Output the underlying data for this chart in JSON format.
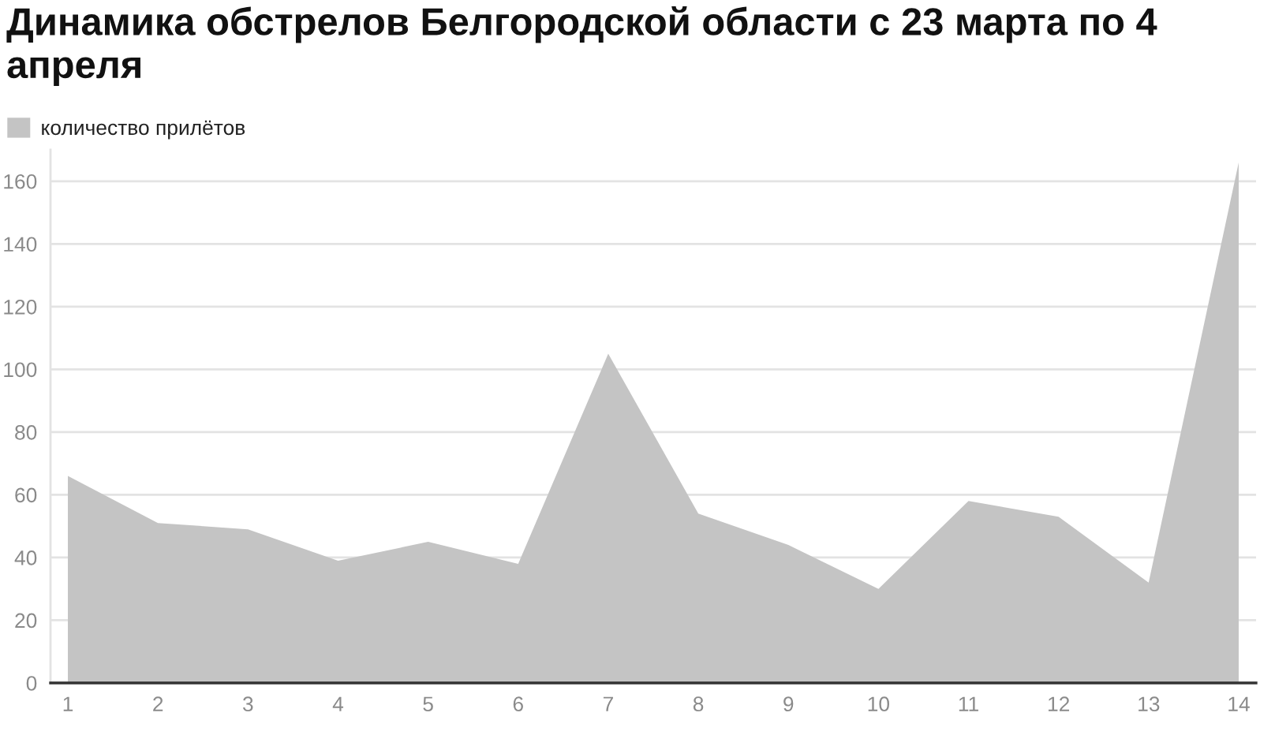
{
  "chart_data": {
    "type": "area",
    "title": "Динамика обстрелов Белгородской области с 23 марта по 4 апреля",
    "categories": [
      "1",
      "2",
      "3",
      "4",
      "5",
      "6",
      "7",
      "8",
      "9",
      "10",
      "11",
      "12",
      "13",
      "14"
    ],
    "series": [
      {
        "name": "количество прилётов",
        "color": "#c4c4c4",
        "values": [
          66,
          51,
          49,
          39,
          45,
          38,
          105,
          54,
          44,
          30,
          58,
          53,
          32,
          166
        ]
      }
    ],
    "ylim": [
      0,
      170
    ],
    "yticks": [
      0,
      20,
      40,
      60,
      80,
      100,
      120,
      140,
      160
    ],
    "grid": "y",
    "legend": "top left"
  }
}
